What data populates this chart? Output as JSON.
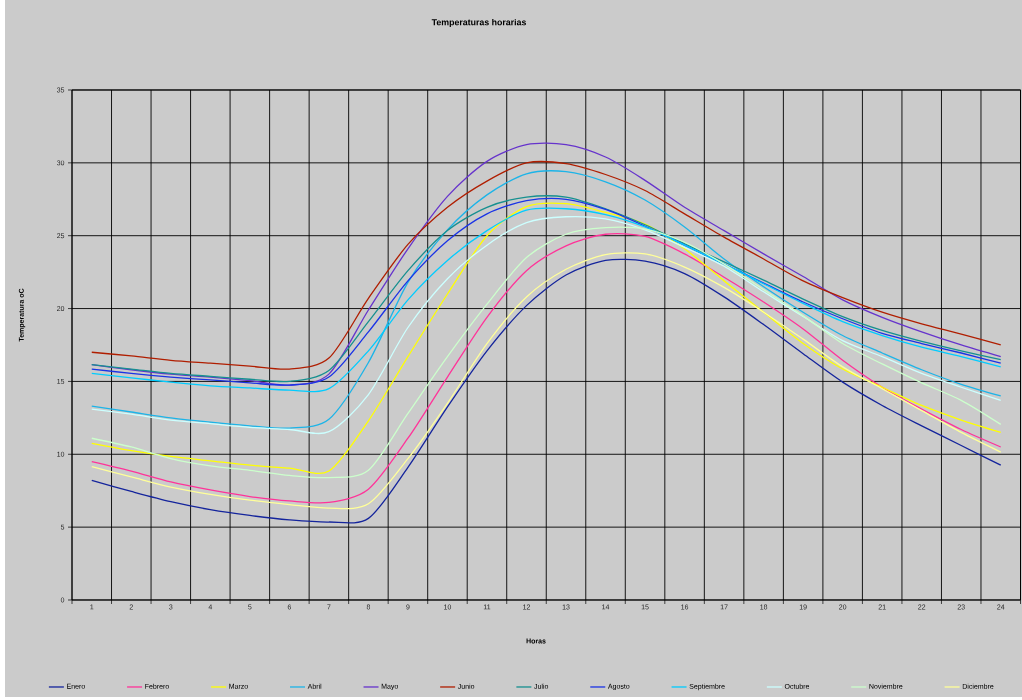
{
  "chart_data": {
    "type": "line",
    "title": "Temperaturas horarias",
    "xlabel": "Horas",
    "ylabel": "Temperatura oC",
    "categories": [
      "1",
      "2",
      "3",
      "4",
      "5",
      "6",
      "7",
      "8",
      "9",
      "10",
      "11",
      "12",
      "13",
      "14",
      "15",
      "16",
      "17",
      "18",
      "19",
      "20",
      "21",
      "22",
      "23",
      "24"
    ],
    "ylim": [
      0,
      35
    ],
    "yticks": [
      0,
      5,
      10,
      15,
      20,
      25,
      30,
      35
    ],
    "grid": true,
    "legend": "bottom",
    "series": [
      {
        "name": "Enero",
        "color": "#14249c",
        "values": [
          8.2,
          7.45,
          6.75,
          6.2,
          5.8,
          5.5,
          5.35,
          5.6,
          9.1,
          13.25,
          17.1,
          20.2,
          22.3,
          23.3,
          23.25,
          22.4,
          20.8,
          18.9,
          16.9,
          14.95,
          13.35,
          11.95,
          10.6,
          9.25
        ]
      },
      {
        "name": "Febrero",
        "color": "#ff3399",
        "values": [
          9.5,
          8.85,
          8.1,
          7.55,
          7.1,
          6.8,
          6.7,
          7.6,
          11.1,
          15.3,
          19.4,
          22.6,
          24.3,
          25.1,
          24.95,
          23.75,
          22.15,
          20.45,
          18.6,
          16.45,
          14.6,
          13.1,
          11.7,
          10.5
        ]
      },
      {
        "name": "Marzo",
        "color": "#ffff00",
        "values": [
          10.75,
          10.25,
          9.85,
          9.55,
          9.25,
          9.05,
          8.85,
          12.3,
          16.7,
          21.0,
          25.0,
          27.0,
          27.2,
          26.6,
          25.8,
          24.1,
          21.9,
          19.75,
          17.6,
          15.85,
          14.6,
          13.35,
          12.35,
          11.5
        ]
      },
      {
        "name": "Abril",
        "color": "#1cb4e8",
        "values": [
          13.3,
          12.9,
          12.5,
          12.2,
          11.95,
          11.8,
          12.4,
          16.3,
          21.8,
          25.4,
          27.8,
          29.25,
          29.4,
          28.7,
          27.45,
          25.6,
          23.4,
          21.5,
          19.75,
          18.15,
          16.95,
          15.8,
          14.8,
          14.0
        ]
      },
      {
        "name": "Mayo",
        "color": "#6633cc",
        "values": [
          16.15,
          15.8,
          15.5,
          15.3,
          15.05,
          14.75,
          15.5,
          19.9,
          24.1,
          27.7,
          30.1,
          31.25,
          31.25,
          30.4,
          28.8,
          26.95,
          25.35,
          23.75,
          22.2,
          20.6,
          19.4,
          18.4,
          17.5,
          16.7
        ]
      },
      {
        "name": "Junio",
        "color": "#b01e00",
        "values": [
          17.0,
          16.75,
          16.45,
          16.25,
          16.05,
          15.85,
          16.6,
          20.7,
          24.4,
          26.95,
          28.75,
          30.0,
          29.95,
          29.2,
          28.1,
          26.5,
          24.9,
          23.4,
          21.9,
          20.75,
          19.75,
          18.95,
          18.25,
          17.5
        ]
      },
      {
        "name": "Julio",
        "color": "#169090",
        "values": [
          16.15,
          15.85,
          15.55,
          15.35,
          15.15,
          15.0,
          15.75,
          19.1,
          22.6,
          25.35,
          26.95,
          27.65,
          27.65,
          26.85,
          25.75,
          24.45,
          23.2,
          21.95,
          20.65,
          19.45,
          18.5,
          17.75,
          17.1,
          16.5
        ]
      },
      {
        "name": "Agosto",
        "color": "#1a33e6",
        "values": [
          15.85,
          15.55,
          15.3,
          15.1,
          14.9,
          14.75,
          15.3,
          18.4,
          21.9,
          24.65,
          26.5,
          27.4,
          27.5,
          26.8,
          25.65,
          24.35,
          23.05,
          21.75,
          20.45,
          19.3,
          18.3,
          17.6,
          16.95,
          16.25
        ]
      },
      {
        "name": "Septiembre",
        "color": "#00ccff",
        "values": [
          15.55,
          15.25,
          14.95,
          14.7,
          14.55,
          14.4,
          14.5,
          17.1,
          20.6,
          23.3,
          25.35,
          26.75,
          26.85,
          26.45,
          25.6,
          24.35,
          23.05,
          21.7,
          20.35,
          19.1,
          18.15,
          17.35,
          16.7,
          16.0
        ]
      },
      {
        "name": "Octubre",
        "color": "#ccffff",
        "values": [
          13.1,
          12.75,
          12.35,
          12.1,
          11.85,
          11.7,
          11.55,
          14.1,
          18.7,
          22.05,
          24.35,
          25.9,
          26.3,
          26.15,
          25.4,
          24.2,
          22.9,
          21.15,
          19.45,
          17.8,
          16.7,
          15.55,
          14.6,
          13.7
        ]
      },
      {
        "name": "Noviembre",
        "color": "#ccffcc",
        "values": [
          11.1,
          10.5,
          9.7,
          9.2,
          8.9,
          8.55,
          8.4,
          8.9,
          12.8,
          16.7,
          20.3,
          23.5,
          25.1,
          25.55,
          25.45,
          24.55,
          23.05,
          21.3,
          19.5,
          17.6,
          16.2,
          14.9,
          13.7,
          12.05
        ]
      },
      {
        "name": "Diciembre",
        "color": "#ffff99",
        "values": [
          9.15,
          8.45,
          7.75,
          7.25,
          6.85,
          6.55,
          6.3,
          6.6,
          9.7,
          13.5,
          17.6,
          20.8,
          22.7,
          23.7,
          23.75,
          22.85,
          21.45,
          19.75,
          17.9,
          16.0,
          14.5,
          13.0,
          11.5,
          10.15
        ]
      }
    ]
  }
}
